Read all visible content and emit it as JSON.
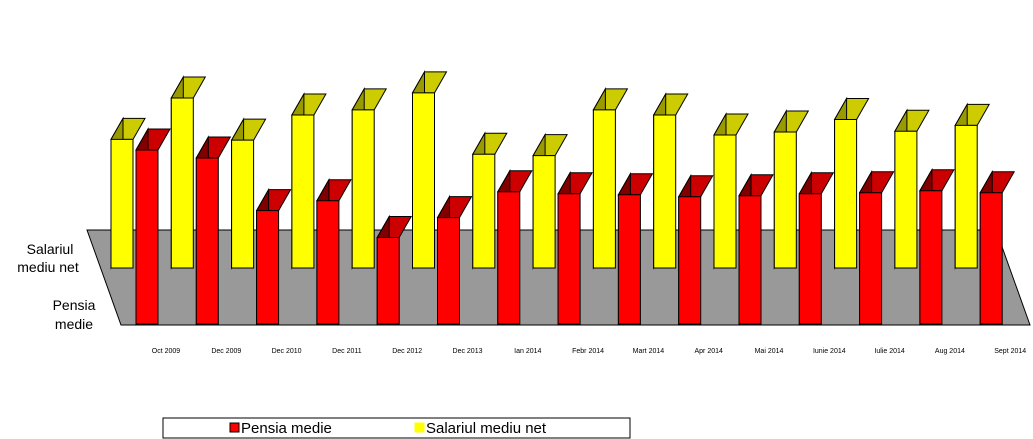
{
  "chart_data": {
    "type": "bar",
    "style": "3d-depth",
    "categories": [
      "Oct 2009",
      "Dec 2009",
      "Dec 2010",
      "Dec 2011",
      "Dec 2012",
      "Dec 2013",
      "Ian 2014",
      "Febr 2014",
      "Mart 2014",
      "Apr 2014",
      "Mai 2014",
      "Iunie 2014",
      "Iulie 2014",
      "Aug 2014",
      "Sept 2014"
    ],
    "series": [
      {
        "name": "Pensia medie",
        "color": "#ff0000",
        "values": [
          175,
          167,
          114,
          124,
          87,
          107,
          133,
          131,
          130,
          128,
          129,
          131,
          132,
          134,
          132
        ]
      },
      {
        "name": "Salariul mediu net",
        "color": "#ffff00",
        "values": [
          174,
          230,
          173,
          207,
          214,
          237,
          154,
          152,
          214,
          207,
          180,
          184,
          201,
          185,
          193
        ]
      }
    ],
    "depth_axis_labels": [
      "Salariul mediu net",
      "Pensia medie"
    ],
    "grid": false,
    "legend_position": "bottom",
    "floor_color": "#999999",
    "bar_side_color": "#800000",
    "bar_top_color": "#cc0000"
  }
}
